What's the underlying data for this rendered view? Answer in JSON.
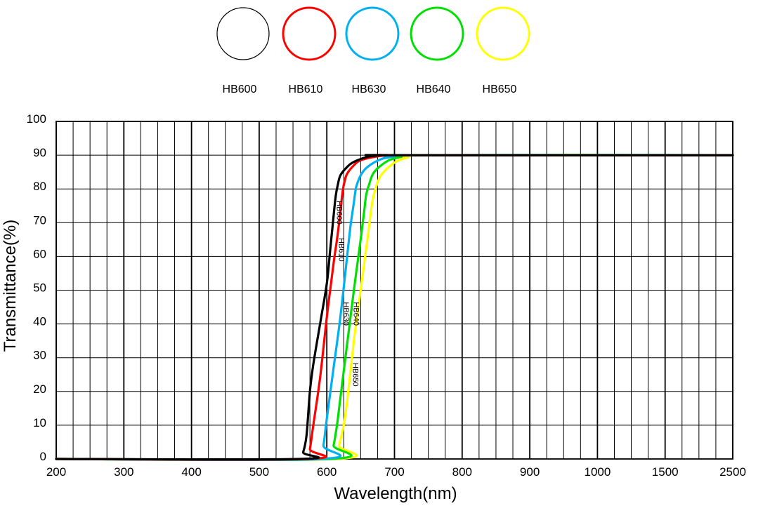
{
  "chart_data": {
    "type": "line",
    "xlabel": "Wavelength(nm)",
    "ylabel": "Transmittance(%)",
    "ylim": [
      0,
      100
    ],
    "y_ticks": [
      0,
      10,
      20,
      30,
      40,
      50,
      60,
      70,
      80,
      90,
      100
    ],
    "x_ticks": [
      200,
      300,
      400,
      500,
      600,
      700,
      800,
      900,
      1000,
      1500,
      2500
    ],
    "grid": true,
    "legend_placement": "top-center",
    "series": [
      {
        "name": "HB600",
        "color": "#000000",
        "x": [
          200,
          560,
          565,
          570,
          575,
          580,
          590,
          600,
          605,
          610,
          612,
          614,
          616,
          620,
          630,
          640,
          660,
          680,
          700,
          2500
        ],
        "y": [
          0,
          0,
          2,
          7,
          20,
          28,
          40,
          52,
          62,
          72,
          76,
          79,
          81,
          84,
          86.5,
          88,
          89.5,
          90,
          90,
          90
        ]
      },
      {
        "name": "HB610",
        "color": "#ff0000",
        "x": [
          200,
          570,
          575,
          580,
          590,
          600,
          610,
          615,
          620,
          622,
          624,
          626,
          630,
          640,
          650,
          670,
          690,
          710,
          2500
        ],
        "y": [
          0,
          0,
          3,
          10,
          24,
          42,
          58,
          65,
          73,
          77,
          80,
          82,
          84.5,
          87,
          88.5,
          89.5,
          90,
          90,
          90
        ]
      },
      {
        "name": "HB630",
        "color": "#00b0f0",
        "x": [
          200,
          590,
          595,
          600,
          610,
          620,
          630,
          635,
          640,
          642,
          644,
          650,
          660,
          680,
          700,
          720,
          2500
        ],
        "y": [
          0,
          0,
          4,
          12,
          27,
          42,
          60,
          69,
          76,
          79,
          81,
          84,
          86.5,
          88.8,
          89.6,
          90,
          90
        ]
      },
      {
        "name": "HB640",
        "color": "#00e000",
        "x": [
          200,
          605,
          610,
          615,
          620,
          630,
          640,
          650,
          655,
          658,
          662,
          670,
          690,
          710,
          730,
          2500
        ],
        "y": [
          0,
          0,
          4,
          10,
          18,
          34,
          50,
          65,
          73,
          78,
          81,
          85,
          88.3,
          89.5,
          90,
          90
        ]
      },
      {
        "name": "HB650",
        "color": "#ffff00",
        "x": [
          200,
          612,
          618,
          625,
          630,
          640,
          650,
          660,
          665,
          668,
          672,
          680,
          700,
          720,
          740,
          2500
        ],
        "y": [
          0,
          0,
          4,
          10,
          17,
          35,
          50,
          65,
          73,
          77,
          80,
          84,
          87.8,
          89.3,
          90,
          90
        ]
      }
    ]
  }
}
